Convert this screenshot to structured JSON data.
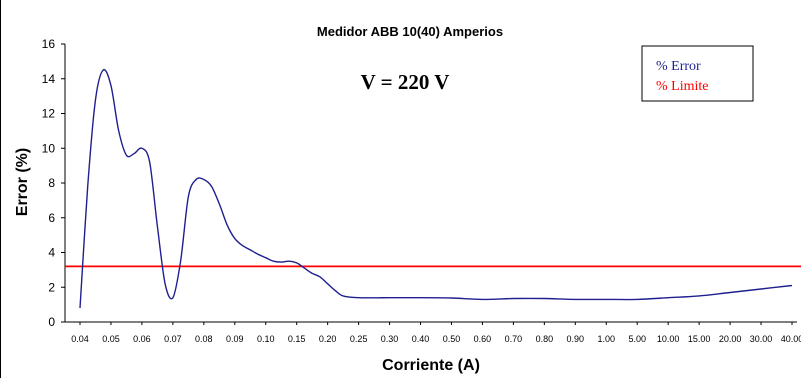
{
  "chart_data": {
    "type": "line",
    "title": "Medidor ABB 10(40) Amperios",
    "annotation": "V = 220 V",
    "xlabel": "Corriente (A)",
    "ylabel": "Error (%)",
    "ylim": [
      0,
      16
    ],
    "yticks": [
      "0",
      "2",
      "4",
      "6",
      "8",
      "10",
      "12",
      "14",
      "16"
    ],
    "categories": [
      "0.04",
      "0.05",
      "0.06",
      "0.07",
      "0.08",
      "0.09",
      "0.10",
      "0.15",
      "0.20",
      "0.25",
      "0.30",
      "0.40",
      "0.50",
      "0.60",
      "0.70",
      "0.80",
      "0.90",
      "1.00",
      "5.00",
      "10.00",
      "15.00",
      "20.00",
      "30.00",
      "40.00"
    ],
    "grid": false,
    "legend_position": "top-right",
    "series": [
      {
        "name": "% Error",
        "color": "#1f1f8f",
        "points": [
          [
            0.0,
            0.8
          ],
          [
            0.25,
            7.8
          ],
          [
            0.5,
            12.8
          ],
          [
            0.75,
            14.5
          ],
          [
            1.0,
            13.6
          ],
          [
            1.25,
            11.0
          ],
          [
            1.5,
            9.6
          ],
          [
            1.75,
            9.7
          ],
          [
            2.0,
            10.0
          ],
          [
            2.25,
            9.2
          ],
          [
            2.5,
            5.5
          ],
          [
            2.75,
            2.2
          ],
          [
            3.0,
            1.4
          ],
          [
            3.25,
            3.5
          ],
          [
            3.5,
            7.2
          ],
          [
            3.75,
            8.2
          ],
          [
            4.0,
            8.2
          ],
          [
            4.25,
            7.8
          ],
          [
            4.5,
            6.8
          ],
          [
            4.75,
            5.6
          ],
          [
            5.0,
            4.8
          ],
          [
            5.25,
            4.4
          ],
          [
            5.5,
            4.15
          ],
          [
            5.75,
            3.9
          ],
          [
            6.0,
            3.7
          ],
          [
            6.25,
            3.5
          ],
          [
            6.5,
            3.45
          ],
          [
            6.75,
            3.5
          ],
          [
            7.0,
            3.4
          ],
          [
            7.25,
            3.1
          ],
          [
            7.5,
            2.8
          ],
          [
            7.75,
            2.6
          ],
          [
            8.0,
            2.2
          ],
          [
            8.25,
            1.8
          ],
          [
            8.5,
            1.5
          ],
          [
            9.0,
            1.4
          ],
          [
            10.0,
            1.4
          ],
          [
            11.0,
            1.4
          ],
          [
            12.0,
            1.38
          ],
          [
            13.0,
            1.3
          ],
          [
            14.0,
            1.35
          ],
          [
            15.0,
            1.35
          ],
          [
            16.0,
            1.3
          ],
          [
            17.0,
            1.3
          ],
          [
            18.0,
            1.3
          ],
          [
            19.0,
            1.4
          ],
          [
            20.0,
            1.5
          ],
          [
            21.0,
            1.7
          ],
          [
            22.0,
            1.9
          ],
          [
            23.0,
            2.1
          ]
        ]
      },
      {
        "name": "% Limite",
        "color": "#ff0000",
        "points": [
          [
            0.0,
            3.2
          ],
          [
            23.0,
            3.2
          ]
        ]
      }
    ]
  }
}
